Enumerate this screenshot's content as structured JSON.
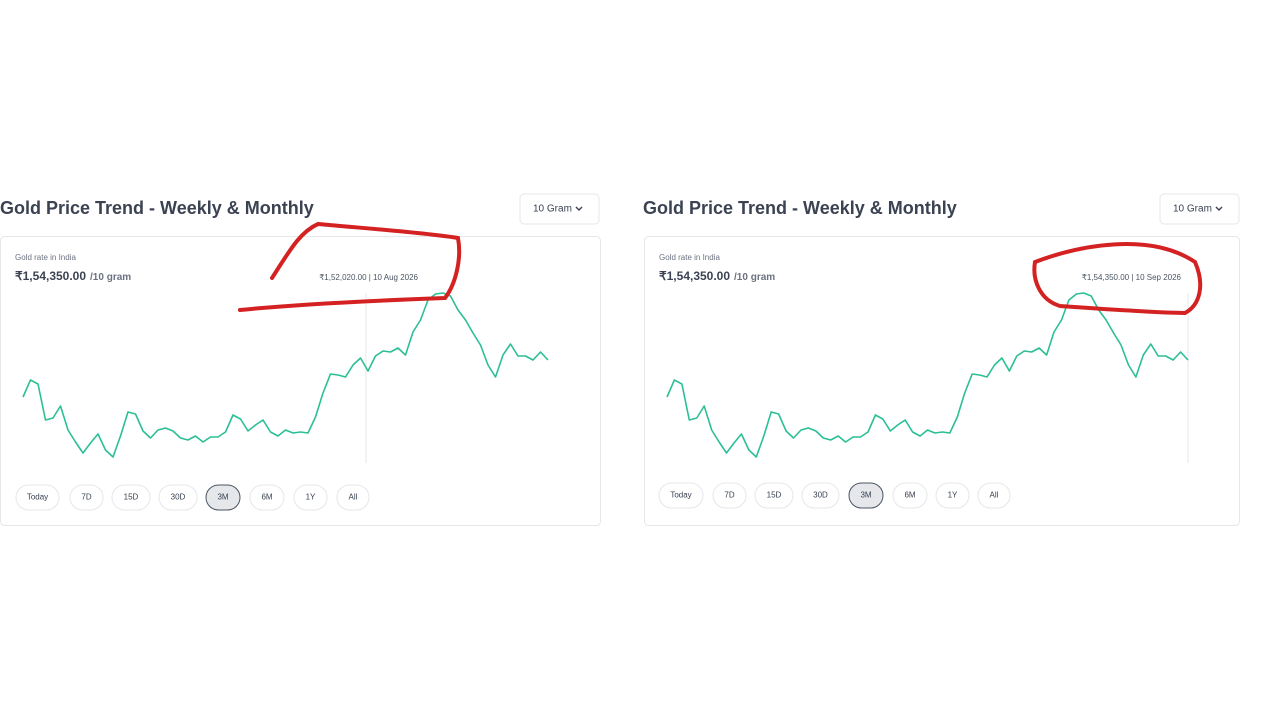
{
  "panels": [
    {
      "title": "Gold Price Trend - Weekly & Monthly",
      "unit_selector": "10 Gram",
      "label": "Gold rate in India",
      "price": "₹1,54,350.00",
      "price_unit": "/10 gram",
      "tooltip": "₹1,52,020.00 | 10 Aug 2026",
      "ranges": [
        "Today",
        "7D",
        "15D",
        "30D",
        "3M",
        "6M",
        "1Y",
        "All"
      ],
      "active_range": "3M"
    },
    {
      "title": "Gold Price Trend - Weekly & Monthly",
      "unit_selector": "10 Gram",
      "label": "Gold rate in India",
      "price": "₹1,54,350.00",
      "price_unit": "/10 gram",
      "tooltip": "₹1,54,350.00 | 10 Sep 2026",
      "ranges": [
        "Today",
        "7D",
        "15D",
        "30D",
        "3M",
        "6M",
        "1Y",
        "All"
      ],
      "active_range": "3M"
    }
  ],
  "chart_data": {
    "type": "line",
    "color": "#2bbf96",
    "values": [
      149280,
      151610,
      151060,
      146130,
      146400,
      148050,
      144760,
      143120,
      141610,
      142980,
      144210,
      142020,
      141060,
      143940,
      147230,
      146950,
      144620,
      143660,
      144760,
      145030,
      144620,
      143660,
      143390,
      143940,
      143120,
      143800,
      143800,
      144490,
      146820,
      146270,
      144620,
      145450,
      146130,
      144490,
      143940,
      144760,
      144350,
      144490,
      144350,
      146540,
      149830,
      152430,
      152300,
      152020,
      153670,
      154620,
      152840,
      154900,
      155580,
      155450,
      155990,
      155040,
      158190,
      159830,
      162570,
      163390,
      163530,
      163120,
      161200,
      159830,
      158050,
      156410,
      153670,
      152020,
      155040,
      156540,
      154900,
      154900,
      154350,
      155450,
      154350
    ]
  }
}
